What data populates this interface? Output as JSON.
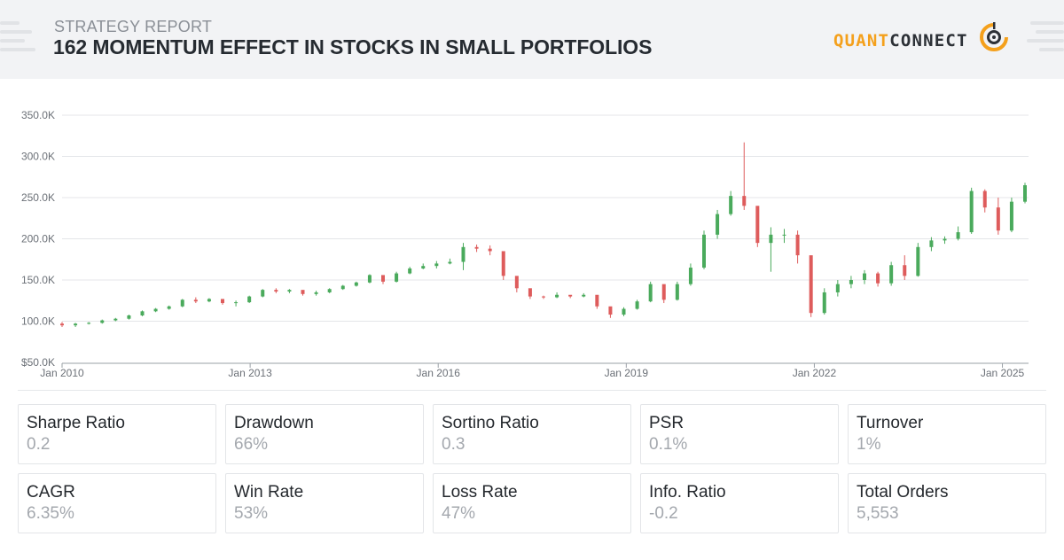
{
  "header": {
    "kicker": "STRATEGY REPORT",
    "title": "162 MOMENTUM EFFECT IN STOCKS IN SMALL PORTFOLIOS",
    "logo_part1": "QUANT",
    "logo_part2": "CONNECT"
  },
  "colors": {
    "up": "#4aaa5c",
    "down": "#de5c5c",
    "grid": "#e4e6e9",
    "axis_text": "#6b7077",
    "brand_orange": "#f4a01c",
    "brand_dark": "#2c3036"
  },
  "chart_data": {
    "type": "candlestick",
    "x_ticks": [
      "Jan 2010",
      "Jan 2013",
      "Jan 2016",
      "Jan 2019",
      "Jan 2022",
      "Jan 2025"
    ],
    "y_ticks": [
      "$50.0K",
      "100.0K",
      "150.0K",
      "200.0K",
      "250.0K",
      "300.0K",
      "350.0K"
    ],
    "ylim": [
      50000,
      350000
    ],
    "xlim": [
      "2010-01",
      "2025-06"
    ],
    "grid": true,
    "series": [
      {
        "values": [
          [
            "2010-01",
            97,
            99,
            93,
            95
          ],
          [
            "2010-04",
            95,
            98,
            93,
            97
          ],
          [
            "2010-07",
            97,
            99,
            96,
            98
          ],
          [
            "2010-10",
            98,
            102,
            97,
            101
          ],
          [
            "2011-01",
            101,
            104,
            100,
            103
          ],
          [
            "2011-04",
            103,
            108,
            102,
            107
          ],
          [
            "2011-07",
            107,
            113,
            106,
            112
          ],
          [
            "2011-10",
            112,
            116,
            111,
            115
          ],
          [
            "2012-01",
            115,
            119,
            114,
            118
          ],
          [
            "2012-04",
            118,
            127,
            117,
            126
          ],
          [
            "2012-07",
            126,
            129,
            122,
            124
          ],
          [
            "2012-10",
            124,
            128,
            123,
            127
          ],
          [
            "2013-01",
            127,
            126,
            120,
            122
          ],
          [
            "2013-04",
            122,
            125,
            118,
            123
          ],
          [
            "2013-07",
            123,
            131,
            122,
            130
          ],
          [
            "2013-10",
            130,
            139,
            129,
            138
          ],
          [
            "2014-01",
            138,
            140,
            134,
            136
          ],
          [
            "2014-04",
            136,
            139,
            134,
            138
          ],
          [
            "2014-07",
            138,
            136,
            131,
            133
          ],
          [
            "2014-10",
            133,
            137,
            131,
            135
          ],
          [
            "2015-01",
            135,
            140,
            134,
            139
          ],
          [
            "2015-04",
            139,
            144,
            138,
            143
          ],
          [
            "2015-07",
            143,
            148,
            142,
            147
          ],
          [
            "2015-10",
            147,
            157,
            146,
            156
          ],
          [
            "2016-01",
            156,
            155,
            145,
            148
          ],
          [
            "2016-04",
            148,
            160,
            147,
            158
          ],
          [
            "2016-07",
            158,
            166,
            157,
            164
          ],
          [
            "2016-10",
            164,
            170,
            163,
            167
          ],
          [
            "2017-01",
            167,
            173,
            164,
            170
          ],
          [
            "2017-04",
            170,
            176,
            169,
            172
          ],
          [
            "2017-07",
            172,
            195,
            162,
            190
          ],
          [
            "2017-10",
            190,
            193,
            184,
            188
          ],
          [
            "2018-01",
            188,
            192,
            180,
            185
          ],
          [
            "2018-04",
            185,
            178,
            150,
            155
          ],
          [
            "2018-07",
            155,
            152,
            135,
            140
          ],
          [
            "2018-10",
            140,
            138,
            127,
            130
          ],
          [
            "2019-01",
            130,
            131,
            127,
            129
          ],
          [
            "2019-04",
            129,
            135,
            128,
            132
          ],
          [
            "2019-07",
            132,
            131,
            128,
            130
          ],
          [
            "2019-10",
            130,
            134,
            129,
            132
          ],
          [
            "2020-01",
            132,
            129,
            115,
            118
          ],
          [
            "2020-04",
            118,
            110,
            104,
            108
          ],
          [
            "2020-07",
            108,
            117,
            106,
            115
          ],
          [
            "2020-10",
            115,
            126,
            114,
            124
          ],
          [
            "2021-01",
            124,
            148,
            123,
            145
          ],
          [
            "2021-04",
            145,
            142,
            122,
            126
          ],
          [
            "2021-07",
            126,
            148,
            125,
            145
          ],
          [
            "2021-10",
            145,
            170,
            143,
            165
          ],
          [
            "2022-01",
            165,
            210,
            163,
            205
          ],
          [
            "2022-04",
            205,
            235,
            200,
            230
          ],
          [
            "2022-07",
            230,
            258,
            228,
            252
          ],
          [
            "2022-10",
            252,
            317,
            235,
            240
          ],
          [
            "2023-01",
            240,
            215,
            190,
            195
          ],
          [
            "2023-04",
            195,
            214,
            160,
            205
          ],
          [
            "2023-07",
            205,
            212,
            195,
            205
          ],
          [
            "2023-10",
            205,
            210,
            170,
            180
          ],
          [
            "2024-01",
            180,
            175,
            105,
            110
          ],
          [
            "2024-04",
            110,
            140,
            108,
            135
          ],
          [
            "2024-07",
            135,
            150,
            130,
            145
          ],
          [
            "2024-10",
            145,
            155,
            140,
            150
          ],
          [
            "2025-01",
            150,
            162,
            145,
            158
          ],
          [
            "2025-04",
            158,
            160,
            142,
            146
          ],
          [
            "2025-07",
            146,
            172,
            143,
            168
          ],
          [
            "2025-10",
            168,
            180,
            150,
            155
          ],
          [
            "2026-01",
            155,
            195,
            154,
            190
          ],
          [
            "2026-04",
            190,
            202,
            185,
            198
          ],
          [
            "2026-07",
            198,
            203,
            194,
            200
          ],
          [
            "2026-10",
            200,
            215,
            198,
            208
          ],
          [
            "2027-01",
            208,
            262,
            206,
            258
          ],
          [
            "2027-04",
            258,
            260,
            232,
            238
          ],
          [
            "2027-07",
            238,
            250,
            205,
            210
          ],
          [
            "2027-10",
            210,
            250,
            208,
            245
          ],
          [
            "2028-01",
            245,
            268,
            243,
            265
          ]
        ]
      }
    ]
  },
  "metrics": [
    {
      "label": "Sharpe Ratio",
      "value": "0.2"
    },
    {
      "label": "Drawdown",
      "value": "66%"
    },
    {
      "label": "Sortino Ratio",
      "value": "0.3"
    },
    {
      "label": "PSR",
      "value": "0.1%"
    },
    {
      "label": "Turnover",
      "value": "1%"
    },
    {
      "label": "CAGR",
      "value": "6.35%"
    },
    {
      "label": "Win Rate",
      "value": "53%"
    },
    {
      "label": "Loss Rate",
      "value": "47%"
    },
    {
      "label": "Info. Ratio",
      "value": "-0.2"
    },
    {
      "label": "Total Orders",
      "value": "5,553"
    }
  ]
}
